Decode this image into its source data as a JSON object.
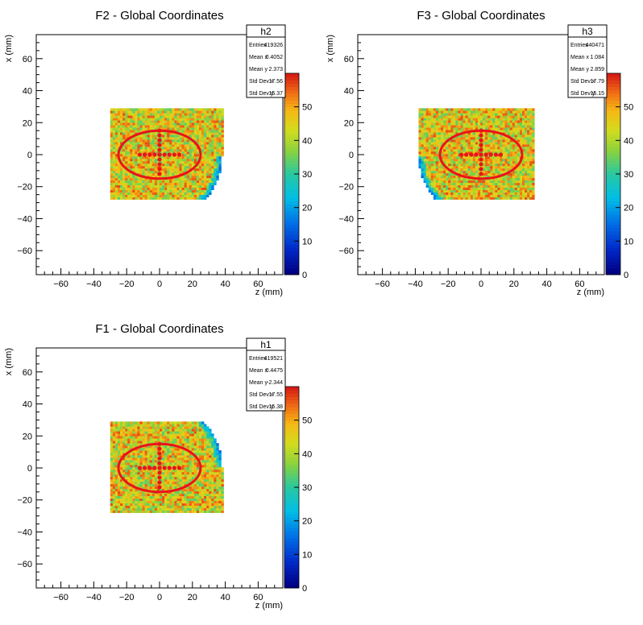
{
  "chart_data": [
    {
      "type": "heatmap",
      "title": "F2 - Global Coordinates",
      "xlabel": "z (mm)",
      "ylabel": "x (mm)",
      "xlim": [
        -75,
        75
      ],
      "ylim": [
        -75,
        75
      ],
      "x_ticks": [
        -60,
        -40,
        -20,
        0,
        20,
        40,
        60
      ],
      "y_ticks": [
        -60,
        -40,
        -20,
        0,
        20,
        40,
        60
      ],
      "colorbar": {
        "min": 0,
        "max": 60,
        "ticks": [
          0,
          10,
          20,
          30,
          40,
          50
        ]
      },
      "region": {
        "z_min": -30,
        "z_max": 38,
        "x_min": -28,
        "x_max": 28,
        "arc_center": [
          -3,
          -1
        ],
        "arc_radius": 41,
        "arc_side": "bottom-right"
      },
      "overlay": {
        "ellipse_center": [
          0,
          0
        ],
        "ellipse_rx": 25,
        "ellipse_ry": 15,
        "cross_h": [
          -12,
          12
        ],
        "cross_v": [
          -12,
          15
        ]
      },
      "stats": {
        "name": "h2",
        "rows": [
          {
            "label": "Entries",
            "value": "419326"
          },
          {
            "label": "Mean x",
            "value": "0.4052"
          },
          {
            "label": "Mean y",
            "value": "2.373"
          },
          {
            "label": "Std Dev x",
            "value": "17.56"
          },
          {
            "label": "Std Dev y",
            "value": "15.37"
          }
        ]
      }
    },
    {
      "type": "heatmap",
      "title": "F3 - Global Coordinates",
      "xlabel": "z (mm)",
      "ylabel": "x (mm)",
      "xlim": [
        -75,
        75
      ],
      "ylim": [
        -75,
        75
      ],
      "x_ticks": [
        -60,
        -40,
        -20,
        0,
        20,
        40,
        60
      ],
      "y_ticks": [
        -60,
        -40,
        -20,
        0,
        20,
        40,
        60
      ],
      "colorbar": {
        "min": 0,
        "max": 60,
        "ticks": [
          0,
          10,
          20,
          30,
          40,
          50
        ]
      },
      "region": {
        "z_min": -38,
        "z_max": 32,
        "x_min": -28,
        "x_max": 28,
        "arc_center": [
          3,
          -1
        ],
        "arc_radius": 41,
        "arc_side": "bottom-left"
      },
      "overlay": {
        "ellipse_center": [
          0,
          0
        ],
        "ellipse_rx": 25,
        "ellipse_ry": 15,
        "cross_h": [
          -12,
          12
        ],
        "cross_v": [
          -12,
          15
        ]
      },
      "stats": {
        "name": "h3",
        "rows": [
          {
            "label": "Entries",
            "value": "440471"
          },
          {
            "label": "Mean x",
            "value": "1.084"
          },
          {
            "label": "Mean y",
            "value": "2.859"
          },
          {
            "label": "Std Dev x",
            "value": "17.79"
          },
          {
            "label": "Std Dev y",
            "value": "15.15"
          }
        ]
      }
    },
    {
      "type": "heatmap",
      "title": "F1 - Global Coordinates",
      "xlabel": "z (mm)",
      "ylabel": "x (mm)",
      "xlim": [
        -75,
        75
      ],
      "ylim": [
        -75,
        75
      ],
      "x_ticks": [
        -60,
        -40,
        -20,
        0,
        20,
        40,
        60
      ],
      "y_ticks": [
        -60,
        -40,
        -20,
        0,
        20,
        40,
        60
      ],
      "colorbar": {
        "min": 0,
        "max": 60,
        "ticks": [
          0,
          10,
          20,
          30,
          40,
          50
        ]
      },
      "region": {
        "z_min": -30,
        "z_max": 38,
        "x_min": -28,
        "x_max": 28,
        "arc_center": [
          -3,
          1
        ],
        "arc_radius": 41,
        "arc_side": "top-right"
      },
      "overlay": {
        "ellipse_center": [
          0,
          0
        ],
        "ellipse_rx": 25,
        "ellipse_ry": 15,
        "cross_h": [
          -12,
          12
        ],
        "cross_v": [
          -12,
          15
        ]
      },
      "stats": {
        "name": "h1",
        "rows": [
          {
            "label": "Entries",
            "value": "419521"
          },
          {
            "label": "Mean x",
            "value": "0.4475"
          },
          {
            "label": "Mean y",
            "value": "-2.344"
          },
          {
            "label": "Std Dev x",
            "value": "17.55"
          },
          {
            "label": "Std Dev y",
            "value": "15.38"
          }
        ]
      }
    }
  ]
}
